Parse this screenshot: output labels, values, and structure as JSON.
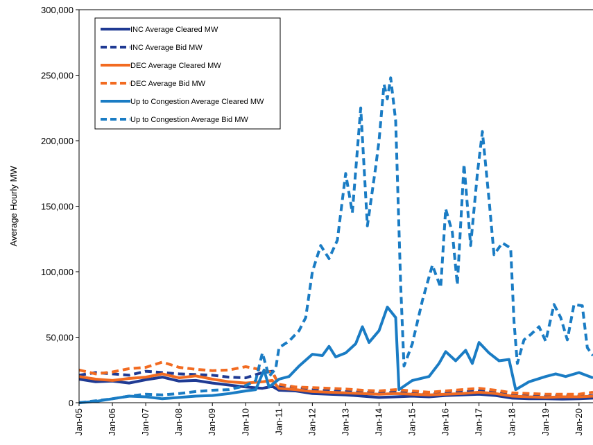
{
  "chart_data": {
    "type": "line",
    "title": "",
    "ylabel": "Average Hourly MW",
    "xlabel": "",
    "ylim": [
      0,
      300000
    ],
    "yticks": [
      0,
      50000,
      100000,
      150000,
      200000,
      250000,
      300000
    ],
    "ytick_labels": [
      "0",
      "50,000",
      "100,000",
      "150,000",
      "200,000",
      "250,000",
      "300,000"
    ],
    "xlim": [
      2005.0,
      2020.42
    ],
    "xticks": [
      2005,
      2006,
      2007,
      2008,
      2009,
      2010,
      2011,
      2012,
      2013,
      2014,
      2015,
      2016,
      2017,
      2018,
      2019,
      2020
    ],
    "xtick_labels": [
      "Jan-05",
      "Jan-06",
      "Jan-07",
      "Jan-08",
      "Jan-09",
      "Jan-10",
      "Jan-11",
      "Jan-12",
      "Jan-13",
      "Jan-14",
      "Jan-15",
      "Jan-16",
      "Jan-17",
      "Jan-18",
      "Jan-19",
      "Jan-20"
    ],
    "grid": false,
    "legend_position": "top-left",
    "series": [
      {
        "name": "INC Average Cleared MW",
        "color": "#1f3a93",
        "dash": false,
        "points": [
          [
            2005.0,
            18000
          ],
          [
            2005.5,
            16000
          ],
          [
            2006.0,
            16500
          ],
          [
            2006.5,
            15000
          ],
          [
            2007.0,
            17500
          ],
          [
            2007.5,
            19500
          ],
          [
            2008.0,
            16500
          ],
          [
            2008.5,
            17000
          ],
          [
            2009.0,
            15000
          ],
          [
            2009.5,
            13500
          ],
          [
            2010.0,
            12000
          ],
          [
            2010.5,
            11000
          ],
          [
            2010.8,
            12500
          ],
          [
            2011.0,
            9500
          ],
          [
            2011.5,
            9000
          ],
          [
            2012.0,
            7000
          ],
          [
            2012.5,
            6500
          ],
          [
            2013.0,
            6000
          ],
          [
            2013.5,
            5000
          ],
          [
            2014.0,
            4000
          ],
          [
            2014.5,
            4500
          ],
          [
            2015.0,
            5000
          ],
          [
            2015.5,
            4500
          ],
          [
            2016.0,
            5500
          ],
          [
            2016.5,
            6000
          ],
          [
            2017.0,
            6500
          ],
          [
            2017.5,
            5500
          ],
          [
            2018.0,
            3500
          ],
          [
            2018.5,
            3000
          ],
          [
            2019.0,
            3000
          ],
          [
            2019.5,
            2800
          ],
          [
            2020.0,
            3000
          ],
          [
            2020.42,
            3500
          ]
        ]
      },
      {
        "name": "INC Average Bid MW",
        "color": "#1f3a93",
        "dash": true,
        "points": [
          [
            2005.0,
            21000
          ],
          [
            2005.5,
            23000
          ],
          [
            2006.0,
            22000
          ],
          [
            2006.5,
            21000
          ],
          [
            2007.0,
            24000
          ],
          [
            2007.5,
            23000
          ],
          [
            2008.0,
            22000
          ],
          [
            2008.5,
            21500
          ],
          [
            2009.0,
            21000
          ],
          [
            2009.5,
            19500
          ],
          [
            2010.0,
            19000
          ],
          [
            2010.5,
            23000
          ],
          [
            2010.8,
            24000
          ],
          [
            2011.0,
            13000
          ],
          [
            2011.5,
            11500
          ],
          [
            2012.0,
            10000
          ],
          [
            2012.5,
            9000
          ],
          [
            2013.0,
            8500
          ],
          [
            2013.5,
            8000
          ],
          [
            2014.0,
            7500
          ],
          [
            2014.5,
            8000
          ],
          [
            2015.0,
            7000
          ],
          [
            2015.5,
            6500
          ],
          [
            2016.0,
            7500
          ],
          [
            2016.5,
            8500
          ],
          [
            2017.0,
            9000
          ],
          [
            2017.5,
            8000
          ],
          [
            2018.0,
            5500
          ],
          [
            2018.5,
            5000
          ],
          [
            2019.0,
            5000
          ],
          [
            2019.5,
            5500
          ],
          [
            2020.0,
            5000
          ],
          [
            2020.42,
            5500
          ]
        ]
      },
      {
        "name": "DEC Average Cleared MW",
        "color": "#f26b21",
        "dash": false,
        "points": [
          [
            2005.0,
            20000
          ],
          [
            2005.5,
            18000
          ],
          [
            2006.0,
            17000
          ],
          [
            2006.5,
            18500
          ],
          [
            2007.0,
            19500
          ],
          [
            2007.5,
            22000
          ],
          [
            2008.0,
            19000
          ],
          [
            2008.5,
            20500
          ],
          [
            2009.0,
            18000
          ],
          [
            2009.5,
            16000
          ],
          [
            2010.0,
            15000
          ],
          [
            2010.5,
            16000
          ],
          [
            2010.8,
            17000
          ],
          [
            2011.0,
            11000
          ],
          [
            2011.5,
            10000
          ],
          [
            2012.0,
            8500
          ],
          [
            2012.5,
            8000
          ],
          [
            2013.0,
            7500
          ],
          [
            2013.5,
            7000
          ],
          [
            2014.0,
            6500
          ],
          [
            2014.5,
            7000
          ],
          [
            2015.0,
            6500
          ],
          [
            2015.5,
            6000
          ],
          [
            2016.0,
            6500
          ],
          [
            2016.5,
            7000
          ],
          [
            2017.0,
            8000
          ],
          [
            2017.5,
            7000
          ],
          [
            2018.0,
            5000
          ],
          [
            2018.5,
            4500
          ],
          [
            2019.0,
            4000
          ],
          [
            2019.5,
            4500
          ],
          [
            2020.0,
            4500
          ],
          [
            2020.42,
            5000
          ]
        ]
      },
      {
        "name": "DEC Average Bid MW",
        "color": "#f26b21",
        "dash": true,
        "points": [
          [
            2005.0,
            25000
          ],
          [
            2005.5,
            22000
          ],
          [
            2006.0,
            23500
          ],
          [
            2006.5,
            26000
          ],
          [
            2007.0,
            27000
          ],
          [
            2007.5,
            31000
          ],
          [
            2008.0,
            27000
          ],
          [
            2008.5,
            25500
          ],
          [
            2009.0,
            24500
          ],
          [
            2009.5,
            25000
          ],
          [
            2010.0,
            27500
          ],
          [
            2010.5,
            25000
          ],
          [
            2010.8,
            23000
          ],
          [
            2011.0,
            14000
          ],
          [
            2011.5,
            12000
          ],
          [
            2012.0,
            11500
          ],
          [
            2012.5,
            11000
          ],
          [
            2013.0,
            10500
          ],
          [
            2013.5,
            9500
          ],
          [
            2014.0,
            9000
          ],
          [
            2014.5,
            10000
          ],
          [
            2015.0,
            9000
          ],
          [
            2015.5,
            8000
          ],
          [
            2016.0,
            9000
          ],
          [
            2016.5,
            10000
          ],
          [
            2017.0,
            11000
          ],
          [
            2017.5,
            9500
          ],
          [
            2018.0,
            7500
          ],
          [
            2018.5,
            7000
          ],
          [
            2019.0,
            6500
          ],
          [
            2019.5,
            6500
          ],
          [
            2020.0,
            6500
          ],
          [
            2020.42,
            8000
          ]
        ]
      },
      {
        "name": "Up to Congestion Average Cleared MW",
        "color": "#1a7cc4",
        "dash": false,
        "points": [
          [
            2005.0,
            0
          ],
          [
            2005.5,
            1000
          ],
          [
            2006.0,
            3000
          ],
          [
            2006.5,
            5000
          ],
          [
            2007.0,
            4500
          ],
          [
            2007.5,
            3000
          ],
          [
            2008.0,
            4000
          ],
          [
            2008.5,
            5000
          ],
          [
            2009.0,
            5500
          ],
          [
            2009.5,
            7000
          ],
          [
            2010.0,
            9000
          ],
          [
            2010.3,
            10000
          ],
          [
            2010.55,
            25000
          ],
          [
            2010.7,
            12000
          ],
          [
            2011.0,
            18000
          ],
          [
            2011.3,
            20000
          ],
          [
            2011.6,
            28000
          ],
          [
            2012.0,
            37000
          ],
          [
            2012.3,
            36000
          ],
          [
            2012.5,
            43000
          ],
          [
            2012.7,
            35000
          ],
          [
            2013.0,
            38000
          ],
          [
            2013.3,
            45000
          ],
          [
            2013.5,
            58000
          ],
          [
            2013.7,
            46000
          ],
          [
            2014.0,
            55000
          ],
          [
            2014.25,
            73000
          ],
          [
            2014.5,
            65000
          ],
          [
            2014.6,
            10000
          ],
          [
            2015.0,
            17000
          ],
          [
            2015.5,
            20000
          ],
          [
            2015.8,
            30000
          ],
          [
            2016.0,
            39000
          ],
          [
            2016.3,
            32000
          ],
          [
            2016.6,
            40000
          ],
          [
            2016.8,
            30000
          ],
          [
            2017.0,
            46000
          ],
          [
            2017.3,
            38000
          ],
          [
            2017.6,
            32000
          ],
          [
            2017.9,
            33000
          ],
          [
            2018.1,
            10000
          ],
          [
            2018.5,
            16000
          ],
          [
            2019.0,
            20000
          ],
          [
            2019.3,
            22000
          ],
          [
            2019.6,
            20000
          ],
          [
            2020.0,
            23000
          ],
          [
            2020.42,
            19000
          ]
        ]
      },
      {
        "name": "Up to Congestion Average Bid MW",
        "color": "#1a7cc4",
        "dash": true,
        "points": [
          [
            2005.0,
            0
          ],
          [
            2005.5,
            1500
          ],
          [
            2006.0,
            3000
          ],
          [
            2006.5,
            5000
          ],
          [
            2007.0,
            6500
          ],
          [
            2007.5,
            6000
          ],
          [
            2008.0,
            7000
          ],
          [
            2008.5,
            8500
          ],
          [
            2009.0,
            9500
          ],
          [
            2009.5,
            10000
          ],
          [
            2010.0,
            13000
          ],
          [
            2010.3,
            17000
          ],
          [
            2010.5,
            38000
          ],
          [
            2010.7,
            20000
          ],
          [
            2010.9,
            26000
          ],
          [
            2011.0,
            42000
          ],
          [
            2011.3,
            47000
          ],
          [
            2011.6,
            55000
          ],
          [
            2011.8,
            65000
          ],
          [
            2012.0,
            100000
          ],
          [
            2012.25,
            120000
          ],
          [
            2012.5,
            110000
          ],
          [
            2012.75,
            124000
          ],
          [
            2013.0,
            175000
          ],
          [
            2013.2,
            145000
          ],
          [
            2013.45,
            225000
          ],
          [
            2013.65,
            135000
          ],
          [
            2013.9,
            180000
          ],
          [
            2014.0,
            200000
          ],
          [
            2014.15,
            243000
          ],
          [
            2014.25,
            232000
          ],
          [
            2014.35,
            248000
          ],
          [
            2014.5,
            215000
          ],
          [
            2014.65,
            90000
          ],
          [
            2014.75,
            28000
          ],
          [
            2015.0,
            45000
          ],
          [
            2015.3,
            78000
          ],
          [
            2015.6,
            105000
          ],
          [
            2015.85,
            88000
          ],
          [
            2016.0,
            148000
          ],
          [
            2016.2,
            130000
          ],
          [
            2016.35,
            90000
          ],
          [
            2016.55,
            182000
          ],
          [
            2016.75,
            120000
          ],
          [
            2016.95,
            175000
          ],
          [
            2017.1,
            207000
          ],
          [
            2017.3,
            155000
          ],
          [
            2017.45,
            113000
          ],
          [
            2017.7,
            122000
          ],
          [
            2017.95,
            118000
          ],
          [
            2018.05,
            62000
          ],
          [
            2018.15,
            30000
          ],
          [
            2018.35,
            48000
          ],
          [
            2018.55,
            52000
          ],
          [
            2018.8,
            58000
          ],
          [
            2019.0,
            47000
          ],
          [
            2019.25,
            75000
          ],
          [
            2019.45,
            65000
          ],
          [
            2019.65,
            48000
          ],
          [
            2019.85,
            75000
          ],
          [
            2020.1,
            74000
          ],
          [
            2020.25,
            42000
          ],
          [
            2020.42,
            36000
          ]
        ]
      }
    ]
  }
}
